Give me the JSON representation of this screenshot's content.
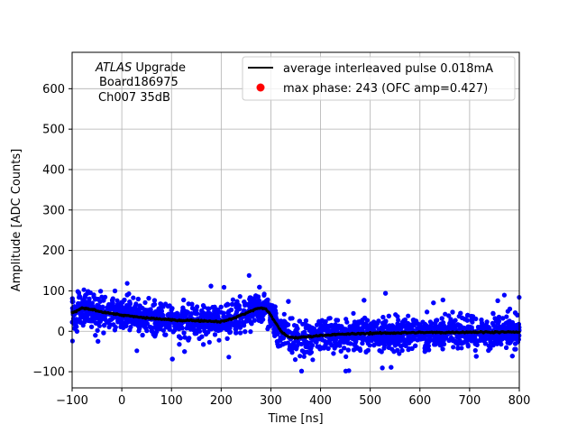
{
  "chart_data": {
    "type": "scatter",
    "title": "",
    "xlabel": "Time [ns]",
    "ylabel": "Amplitude [ADC Counts]",
    "xlim": [
      -100,
      800
    ],
    "ylim": [
      -140,
      690
    ],
    "xticks": [
      -100,
      0,
      100,
      200,
      300,
      400,
      500,
      600,
      700,
      800
    ],
    "yticks": [
      -100,
      0,
      100,
      200,
      300,
      400,
      500,
      600
    ],
    "grid": true,
    "legend_position": "top-right",
    "annotation": {
      "line1_italic": "ATLAS",
      "line1_rest": " Upgrade",
      "line2": "Board186975",
      "line3": "Ch007 35dB"
    },
    "legend": [
      {
        "label": "average interleaved pulse 0.018mA",
        "color": "#000000",
        "marker": "line"
      },
      {
        "label": "max phase: 243 (OFC amp=0.427)",
        "color": "#ff0000",
        "marker": "dot"
      }
    ],
    "series": [
      {
        "name": "samples",
        "color": "#0000ff",
        "marker": "dot",
        "description": "dense scatter band around the average pulse",
        "spread_sigma": 20,
        "outlier_range": [
          -105,
          165
        ]
      },
      {
        "name": "average interleaved pulse 0.018mA",
        "color": "#000000",
        "x": [
          -100,
          -80,
          -60,
          -40,
          -20,
          0,
          20,
          40,
          60,
          80,
          100,
          120,
          140,
          160,
          180,
          200,
          220,
          240,
          260,
          270,
          280,
          290,
          300,
          310,
          320,
          330,
          340,
          350,
          360,
          380,
          400,
          450,
          500,
          550,
          600,
          650,
          700,
          750,
          800
        ],
        "y": [
          45,
          57,
          54,
          48,
          44,
          40,
          37,
          34,
          32,
          30,
          28,
          27,
          27,
          26,
          25,
          24,
          30,
          40,
          50,
          55,
          58,
          55,
          40,
          20,
          0,
          -10,
          -15,
          -16,
          -15,
          -13,
          -10,
          -7,
          -5,
          -4,
          -3,
          -3,
          -2,
          -2,
          -2
        ]
      }
    ]
  }
}
